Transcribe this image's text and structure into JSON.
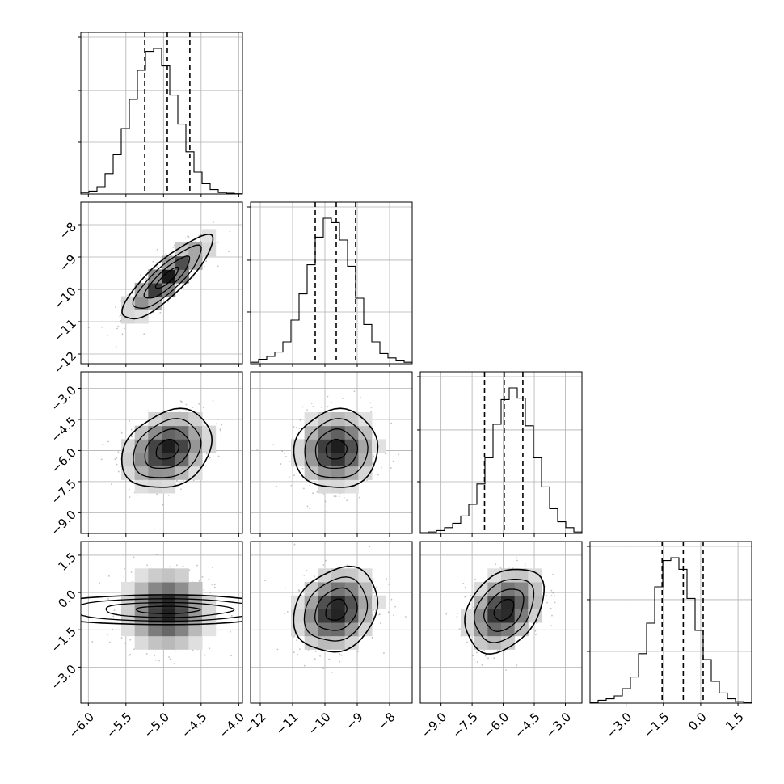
{
  "chart_data": {
    "type": "corner",
    "dimensions": 4,
    "grid": true,
    "quantiles_shown": [
      0.16,
      0.5,
      0.84
    ],
    "parameters": [
      {
        "range": [
          -6.1,
          -3.95
        ],
        "ticks": [
          -6.0,
          -5.5,
          -5.0,
          -4.5,
          -4.0
        ],
        "tick_labels": [
          "−6.0",
          "−5.5",
          "−5.0",
          "−4.5",
          "−4.0"
        ],
        "mean": -4.95,
        "sigma": 0.3,
        "quantiles": [
          -5.25,
          -4.95,
          -4.65
        ],
        "histogram": [
          0.01,
          0.02,
          0.05,
          0.14,
          0.27,
          0.45,
          0.65,
          0.85,
          0.98,
          1.0,
          0.88,
          0.68,
          0.48,
          0.29,
          0.15,
          0.07,
          0.03,
          0.01,
          0.005,
          0.002
        ]
      },
      {
        "range": [
          -12.3,
          -7.3
        ],
        "ticks": [
          -12,
          -11,
          -10,
          -9,
          -8
        ],
        "tick_labels": [
          "−12",
          "−11",
          "−10",
          "−9",
          "−8"
        ],
        "mean": -9.65,
        "sigma": 0.65,
        "quantiles": [
          -10.3,
          -9.65,
          -9.05
        ],
        "histogram": [
          0.01,
          0.03,
          0.05,
          0.08,
          0.15,
          0.3,
          0.48,
          0.68,
          0.87,
          1.0,
          0.97,
          0.85,
          0.67,
          0.45,
          0.27,
          0.15,
          0.07,
          0.04,
          0.02,
          0.01
        ]
      },
      {
        "range": [
          -10.0,
          -2.2
        ],
        "ticks": [
          -9.0,
          -7.5,
          -6.0,
          -4.5,
          -3.0
        ],
        "tick_labels": [
          "−9.0",
          "−7.5",
          "−6.0",
          "−4.5",
          "−3.0"
        ],
        "mean": -5.95,
        "sigma": 0.95,
        "quantiles": [
          -6.9,
          -5.95,
          -5.05
        ],
        "histogram": [
          0.005,
          0.01,
          0.02,
          0.04,
          0.07,
          0.12,
          0.2,
          0.34,
          0.52,
          0.75,
          0.92,
          1.0,
          0.93,
          0.74,
          0.52,
          0.32,
          0.17,
          0.08,
          0.04,
          0.01
        ]
      },
      {
        "range": [
          -4.45,
          2.05
        ],
        "ticks": [
          -3.0,
          -1.5,
          0.0,
          1.5
        ],
        "tick_labels": [
          "−3.0",
          "−1.5",
          "0.0",
          "1.5"
        ],
        "mean": -0.7,
        "sigma": 0.85,
        "quantiles": [
          -1.55,
          -0.7,
          0.1
        ],
        "histogram": [
          0.005,
          0.02,
          0.03,
          0.05,
          0.1,
          0.18,
          0.34,
          0.55,
          0.8,
          0.98,
          1.0,
          0.92,
          0.72,
          0.5,
          0.3,
          0.15,
          0.07,
          0.03,
          0.01,
          0.005
        ]
      }
    ],
    "correlations": {
      "1-0": 0.85,
      "2-0": 0.25,
      "2-1": 0.05,
      "3-0": 0.0,
      "3-1": 0.2,
      "3-2": 0.35
    },
    "contour_levels_sigma": [
      0.5,
      1.0,
      1.5,
      2.0
    ],
    "scatter_points_per_panel": 450
  }
}
